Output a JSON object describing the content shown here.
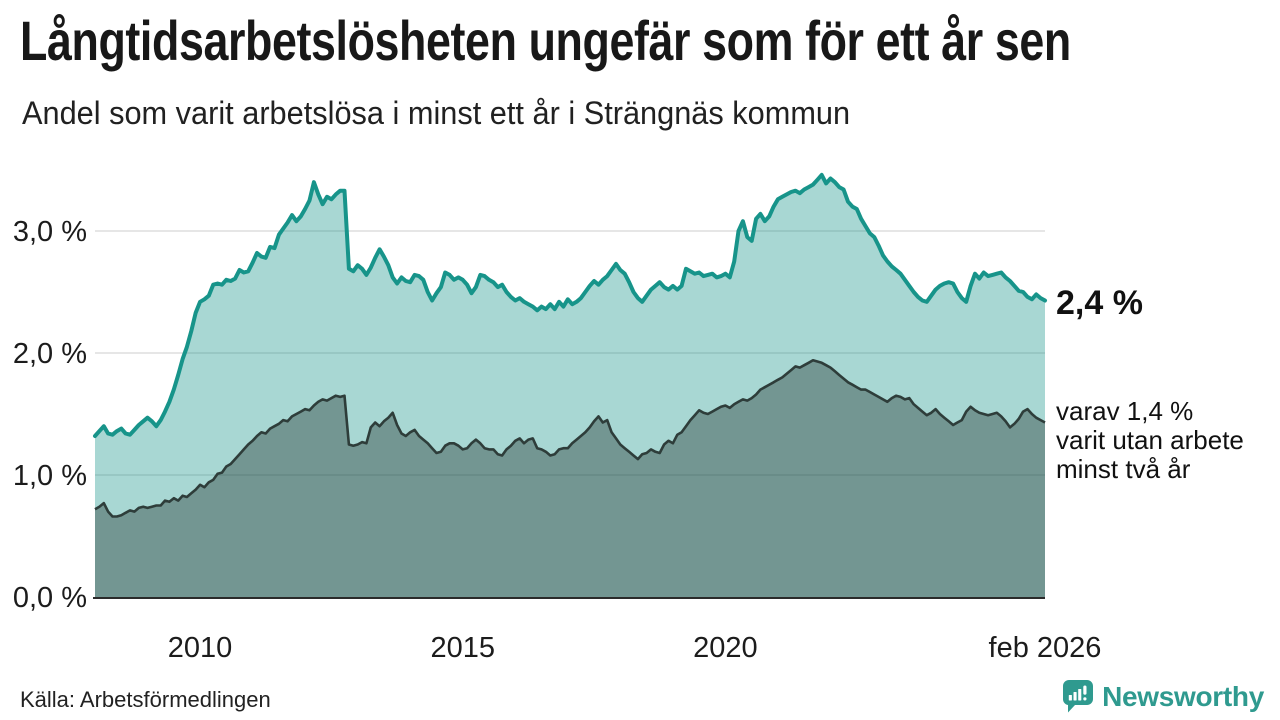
{
  "header": {
    "title": "Långtidsarbetslösheten ungefär som för ett år sen",
    "subtitle": "Andel som varit arbetslösa i minst ett år i Strängnäs kommun"
  },
  "annotations": {
    "end_value": "2,4 %",
    "sub_note": "varav 1,4 %\nvarit utan arbete\nminst två år"
  },
  "footer": {
    "source": "Källa: Arbetsförmedlingen",
    "brand": "Newsworthy"
  },
  "colors": {
    "line_upper": "#17948a",
    "line_lower": "#2e3d3a",
    "area_upper": "rgba(26,150,139,0.38)",
    "area_lower": "rgba(35,53,50,0.40)",
    "grid": "#cccccc",
    "axis": "#2b2b2b",
    "brand": "#2f9a8f"
  },
  "chart_data": {
    "type": "area",
    "title": "Långtidsarbetslösheten ungefär som för ett år sen",
    "subtitle": "Andel som varit arbetslösa i minst ett år i Strängnäs kommun",
    "unit": "%",
    "frequency": "monthly",
    "x_start": "2008-01",
    "x_end": "2026-02",
    "ylim": [
      0,
      3.5
    ],
    "grid": "horizontal",
    "legend_position": "none",
    "gridlines": [
      1,
      2,
      3
    ],
    "yticks": [
      {
        "value": 0,
        "label": "0,0 %"
      },
      {
        "value": 1,
        "label": "1,0 %"
      },
      {
        "value": 2,
        "label": "2,0 %"
      },
      {
        "value": 3,
        "label": "3,0 %"
      }
    ],
    "xticks": [
      {
        "index": 24,
        "label": "2010"
      },
      {
        "index": 84,
        "label": "2015"
      },
      {
        "index": 144,
        "label": "2020"
      },
      {
        "index": 217,
        "label": "feb 2026"
      }
    ],
    "end_labels": {
      "upper": "2,4 %",
      "lower": "varav 1,4 % varit utan arbete minst två år"
    },
    "series": [
      {
        "name": "Arbetslösa minst ett år",
        "values": [
          1.32,
          1.36,
          1.4,
          1.34,
          1.33,
          1.36,
          1.38,
          1.34,
          1.33,
          1.37,
          1.41,
          1.44,
          1.47,
          1.44,
          1.4,
          1.45,
          1.52,
          1.6,
          1.7,
          1.82,
          1.95,
          2.05,
          2.18,
          2.33,
          2.42,
          2.44,
          2.47,
          2.56,
          2.57,
          2.56,
          2.6,
          2.59,
          2.61,
          2.68,
          2.66,
          2.67,
          2.74,
          2.82,
          2.79,
          2.78,
          2.87,
          2.86,
          2.97,
          3.02,
          3.07,
          3.13,
          3.08,
          3.12,
          3.18,
          3.25,
          3.4,
          3.3,
          3.22,
          3.28,
          3.26,
          3.3,
          3.33,
          3.33,
          2.69,
          2.67,
          2.72,
          2.69,
          2.64,
          2.7,
          2.78,
          2.85,
          2.79,
          2.72,
          2.62,
          2.57,
          2.62,
          2.59,
          2.58,
          2.64,
          2.63,
          2.6,
          2.5,
          2.43,
          2.49,
          2.54,
          2.66,
          2.64,
          2.6,
          2.62,
          2.6,
          2.56,
          2.49,
          2.54,
          2.64,
          2.63,
          2.6,
          2.58,
          2.54,
          2.56,
          2.5,
          2.46,
          2.43,
          2.45,
          2.42,
          2.4,
          2.38,
          2.35,
          2.38,
          2.36,
          2.4,
          2.36,
          2.42,
          2.38,
          2.44,
          2.4,
          2.42,
          2.45,
          2.5,
          2.55,
          2.59,
          2.56,
          2.6,
          2.63,
          2.68,
          2.73,
          2.68,
          2.65,
          2.58,
          2.5,
          2.45,
          2.42,
          2.47,
          2.52,
          2.55,
          2.58,
          2.54,
          2.52,
          2.55,
          2.52,
          2.55,
          2.69,
          2.67,
          2.65,
          2.66,
          2.63,
          2.64,
          2.65,
          2.62,
          2.63,
          2.65,
          2.62,
          2.75,
          3.0,
          3.08,
          2.95,
          2.92,
          3.1,
          3.14,
          3.08,
          3.12,
          3.2,
          3.26,
          3.28,
          3.3,
          3.32,
          3.33,
          3.31,
          3.34,
          3.36,
          3.38,
          3.42,
          3.46,
          3.39,
          3.43,
          3.4,
          3.36,
          3.34,
          3.24,
          3.2,
          3.18,
          3.1,
          3.04,
          2.98,
          2.95,
          2.88,
          2.8,
          2.75,
          2.71,
          2.68,
          2.65,
          2.6,
          2.55,
          2.5,
          2.46,
          2.43,
          2.42,
          2.47,
          2.52,
          2.55,
          2.57,
          2.58,
          2.57,
          2.5,
          2.45,
          2.42,
          2.55,
          2.65,
          2.61,
          2.66,
          2.63,
          2.64,
          2.65,
          2.66,
          2.62,
          2.59,
          2.55,
          2.51,
          2.5,
          2.46,
          2.44,
          2.48,
          2.45,
          2.43
        ]
      },
      {
        "name": "varav utan arbete minst två år",
        "values": [
          0.72,
          0.74,
          0.77,
          0.7,
          0.66,
          0.66,
          0.67,
          0.69,
          0.71,
          0.7,
          0.73,
          0.74,
          0.73,
          0.74,
          0.75,
          0.75,
          0.79,
          0.78,
          0.81,
          0.79,
          0.83,
          0.82,
          0.85,
          0.88,
          0.92,
          0.9,
          0.94,
          0.96,
          1.01,
          1.02,
          1.07,
          1.09,
          1.13,
          1.17,
          1.21,
          1.25,
          1.28,
          1.32,
          1.35,
          1.34,
          1.38,
          1.4,
          1.42,
          1.45,
          1.44,
          1.48,
          1.5,
          1.52,
          1.54,
          1.53,
          1.57,
          1.6,
          1.62,
          1.61,
          1.63,
          1.65,
          1.64,
          1.65,
          1.25,
          1.24,
          1.25,
          1.27,
          1.26,
          1.39,
          1.43,
          1.4,
          1.44,
          1.47,
          1.51,
          1.41,
          1.34,
          1.32,
          1.35,
          1.37,
          1.32,
          1.29,
          1.26,
          1.22,
          1.18,
          1.19,
          1.24,
          1.26,
          1.26,
          1.24,
          1.21,
          1.22,
          1.26,
          1.29,
          1.26,
          1.22,
          1.21,
          1.21,
          1.17,
          1.16,
          1.21,
          1.24,
          1.28,
          1.3,
          1.26,
          1.29,
          1.3,
          1.22,
          1.21,
          1.19,
          1.16,
          1.17,
          1.21,
          1.22,
          1.22,
          1.26,
          1.29,
          1.32,
          1.35,
          1.39,
          1.44,
          1.48,
          1.43,
          1.45,
          1.35,
          1.3,
          1.25,
          1.22,
          1.19,
          1.16,
          1.13,
          1.17,
          1.18,
          1.21,
          1.19,
          1.18,
          1.25,
          1.28,
          1.26,
          1.33,
          1.35,
          1.4,
          1.45,
          1.49,
          1.53,
          1.51,
          1.5,
          1.52,
          1.54,
          1.56,
          1.57,
          1.55,
          1.58,
          1.6,
          1.62,
          1.61,
          1.63,
          1.66,
          1.7,
          1.72,
          1.74,
          1.76,
          1.78,
          1.8,
          1.83,
          1.86,
          1.89,
          1.88,
          1.9,
          1.92,
          1.94,
          1.93,
          1.92,
          1.9,
          1.88,
          1.85,
          1.82,
          1.79,
          1.76,
          1.74,
          1.72,
          1.7,
          1.7,
          1.68,
          1.66,
          1.64,
          1.62,
          1.6,
          1.63,
          1.65,
          1.64,
          1.62,
          1.63,
          1.58,
          1.55,
          1.52,
          1.49,
          1.51,
          1.54,
          1.5,
          1.47,
          1.44,
          1.41,
          1.43,
          1.45,
          1.52,
          1.56,
          1.53,
          1.51,
          1.5,
          1.49,
          1.5,
          1.51,
          1.48,
          1.44,
          1.39,
          1.42,
          1.46,
          1.52,
          1.54,
          1.5,
          1.47,
          1.45,
          1.43
        ]
      }
    ]
  }
}
